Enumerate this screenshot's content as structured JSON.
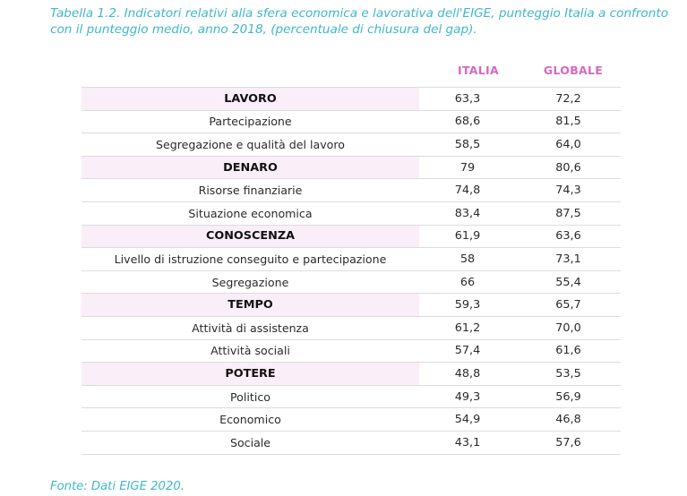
{
  "caption": "Tabella 1.2. Indicatori relativi alla sfera economica e lavorativa dell'EIGE, punteggio Italia a confronto con il punteggio medio, anno 2018, (percentuale di chiusura del gap).",
  "columns": {
    "italia": "ITALIA",
    "globale": "GLOBALE"
  },
  "rows": [
    {
      "label": "LAVORO",
      "category": true,
      "italia": "63,3",
      "globale": "72,2"
    },
    {
      "label": "Partecipazione",
      "category": false,
      "italia": "68,6",
      "globale": "81,5"
    },
    {
      "label": "Segregazione e qualità del lavoro",
      "category": false,
      "italia": "58,5",
      "globale": "64,0"
    },
    {
      "label": "DENARO",
      "category": true,
      "italia": "79",
      "globale": "80,6"
    },
    {
      "label": "Risorse finanziarie",
      "category": false,
      "italia": "74,8",
      "globale": "74,3"
    },
    {
      "label": "Situazione economica",
      "category": false,
      "italia": "83,4",
      "globale": "87,5"
    },
    {
      "label": "CONOSCENZA",
      "category": true,
      "italia": "61,9",
      "globale": "63,6"
    },
    {
      "label": "Livello di istruzione conseguito e partecipazione",
      "category": false,
      "italia": "58",
      "globale": "73,1"
    },
    {
      "label": "Segregazione",
      "category": false,
      "italia": "66",
      "globale": "55,4"
    },
    {
      "label": "TEMPO",
      "category": true,
      "italia": "59,3",
      "globale": "65,7"
    },
    {
      "label": "Attività di assistenza",
      "category": false,
      "italia": "61,2",
      "globale": "70,0"
    },
    {
      "label": "Attività sociali",
      "category": false,
      "italia": "57,4",
      "globale": "61,6"
    },
    {
      "label": "POTERE",
      "category": true,
      "italia": "48,8",
      "globale": "53,5"
    },
    {
      "label": "Politico",
      "category": false,
      "italia": "49,3",
      "globale": "56,9"
    },
    {
      "label": "Economico",
      "category": false,
      "italia": "54,9",
      "globale": "46,8"
    },
    {
      "label": "Sociale",
      "category": false,
      "italia": "43,1",
      "globale": "57,6"
    }
  ],
  "source": "Fonte: Dati EIGE 2020."
}
